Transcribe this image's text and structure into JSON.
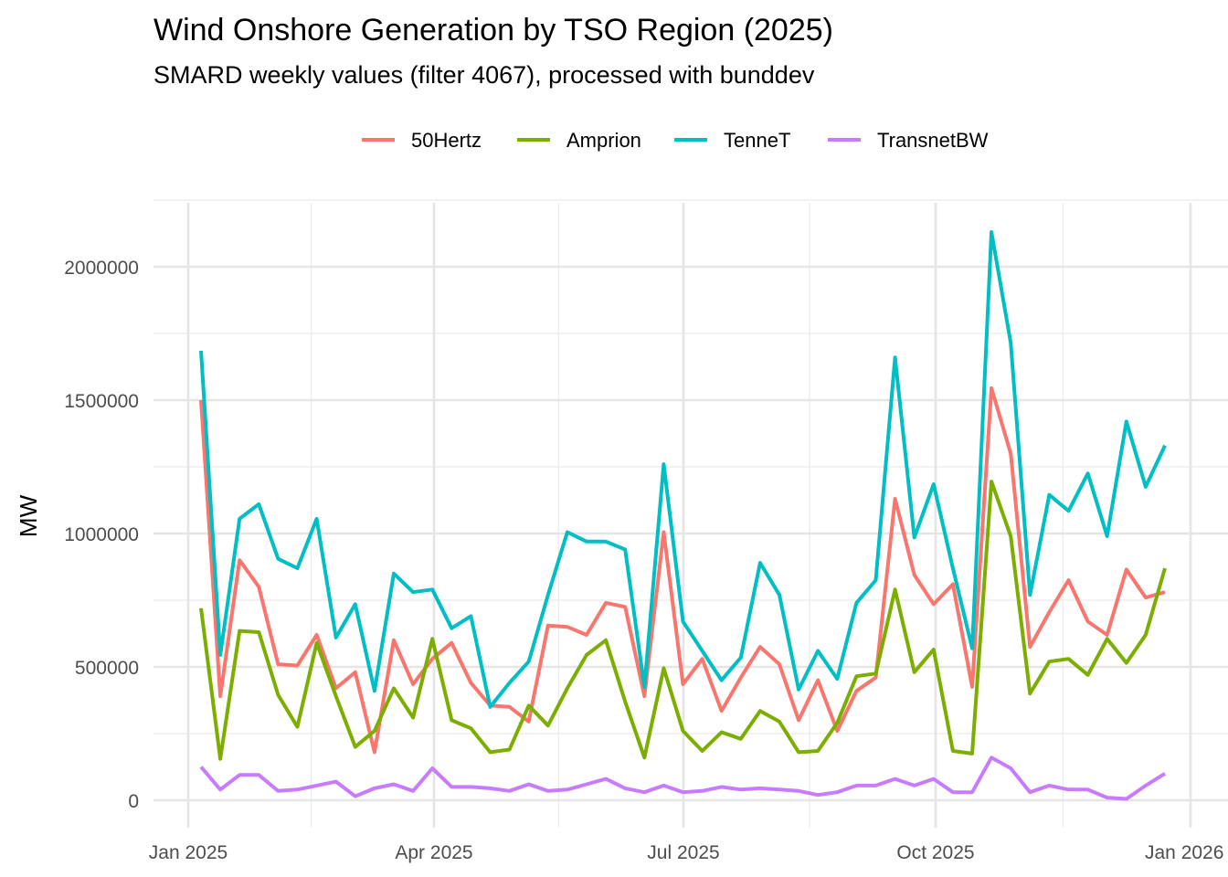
{
  "chart_data": {
    "type": "line",
    "title": "Wind Onshore Generation by TSO Region (2025)",
    "subtitle": "SMARD weekly values (filter 4067), processed with bunddev",
    "xlabel": "",
    "ylabel": "MW",
    "x_tick_labels": [
      "Jan 2025",
      "Apr 2025",
      "Jul 2025",
      "Oct 2025",
      "Jan 2026"
    ],
    "y_tick_labels": [
      "0",
      "500000",
      "1000000",
      "1500000",
      "2000000"
    ],
    "y_ticks": [
      0,
      500000,
      1000000,
      1500000,
      2000000
    ],
    "ylim": [
      -90000,
      2230000
    ],
    "xlim_weeks": [
      -1,
      54
    ],
    "x_ticks_weeks": [
      0,
      12.86,
      25.86,
      39,
      52.14
    ],
    "grid": true,
    "legend_position": "top",
    "x_start": "2025-01-06",
    "x_step": "1 week",
    "series": [
      {
        "name": "50Hertz",
        "color": "#F8766D",
        "values": [
          1500000,
          390000,
          900000,
          800000,
          510000,
          505000,
          620000,
          420000,
          480000,
          180000,
          600000,
          435000,
          530000,
          590000,
          440000,
          355000,
          350000,
          295000,
          655000,
          650000,
          620000,
          740000,
          725000,
          390000,
          1005000,
          435000,
          530000,
          335000,
          460000,
          575000,
          510000,
          300000,
          450000,
          260000,
          410000,
          460000,
          1130000,
          845000,
          735000,
          810000,
          425000,
          1545000,
          1300000,
          575000,
          705000,
          825000,
          670000,
          620000,
          865000,
          760000,
          780000
        ]
      },
      {
        "name": "Amprion",
        "color": "#7CAE00",
        "values": [
          720000,
          155000,
          635000,
          630000,
          395000,
          275000,
          590000,
          390000,
          200000,
          260000,
          420000,
          310000,
          605000,
          300000,
          270000,
          180000,
          190000,
          355000,
          280000,
          420000,
          545000,
          600000,
          370000,
          160000,
          495000,
          260000,
          185000,
          255000,
          230000,
          335000,
          295000,
          180000,
          185000,
          290000,
          465000,
          475000,
          790000,
          480000,
          565000,
          185000,
          175000,
          1195000,
          990000,
          400000,
          520000,
          530000,
          470000,
          605000,
          515000,
          620000,
          870000
        ]
      },
      {
        "name": "TenneT",
        "color": "#00BFC4",
        "values": [
          1685000,
          545000,
          1055000,
          1110000,
          905000,
          870000,
          1055000,
          610000,
          735000,
          410000,
          850000,
          780000,
          790000,
          645000,
          690000,
          350000,
          440000,
          520000,
          770000,
          1005000,
          970000,
          970000,
          940000,
          425000,
          1260000,
          670000,
          560000,
          450000,
          535000,
          890000,
          770000,
          415000,
          560000,
          455000,
          740000,
          825000,
          1660000,
          985000,
          1185000,
          870000,
          570000,
          2130000,
          1715000,
          770000,
          1145000,
          1085000,
          1225000,
          990000,
          1420000,
          1175000,
          1330000
        ]
      },
      {
        "name": "TransnetBW",
        "color": "#C77CFF",
        "values": [
          125000,
          40000,
          95000,
          95000,
          35000,
          40000,
          55000,
          70000,
          15000,
          45000,
          60000,
          35000,
          120000,
          50000,
          50000,
          45000,
          35000,
          60000,
          35000,
          40000,
          60000,
          80000,
          45000,
          30000,
          55000,
          30000,
          35000,
          50000,
          40000,
          45000,
          40000,
          35000,
          20000,
          30000,
          55000,
          55000,
          80000,
          55000,
          80000,
          30000,
          30000,
          160000,
          120000,
          30000,
          55000,
          40000,
          40000,
          10000,
          5000,
          55000,
          100000
        ]
      }
    ]
  }
}
